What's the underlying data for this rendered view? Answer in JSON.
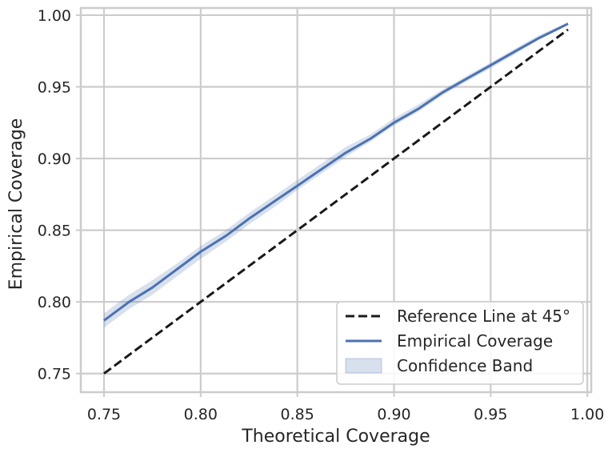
{
  "chart_data": {
    "type": "line",
    "title": "",
    "xlabel": "Theoretical Coverage",
    "ylabel": "Empirical Coverage",
    "xlim": [
      0.738,
      1.002
    ],
    "ylim": [
      0.737,
      1.005
    ],
    "xticks": [
      0.75,
      0.8,
      0.85,
      0.9,
      0.95,
      1.0
    ],
    "xtick_labels": [
      "0.75",
      "0.80",
      "0.85",
      "0.90",
      "0.95",
      "1.00"
    ],
    "yticks": [
      0.75,
      0.8,
      0.85,
      0.9,
      0.95,
      1.0
    ],
    "ytick_labels": [
      "0.75",
      "0.80",
      "0.85",
      "0.90",
      "0.95",
      "1.00"
    ],
    "grid": true,
    "legend_position": "bottom-right",
    "series": [
      {
        "name": "Reference Line at 45°",
        "kind": "line",
        "style": "dashed",
        "color": "#1a1a1a",
        "x": [
          0.75,
          0.99
        ],
        "y": [
          0.75,
          0.99
        ]
      },
      {
        "name": "Empirical Coverage",
        "kind": "line",
        "style": "solid",
        "color": "#4c72b0",
        "x": [
          0.75,
          0.763,
          0.775,
          0.788,
          0.8,
          0.813,
          0.825,
          0.838,
          0.85,
          0.863,
          0.875,
          0.888,
          0.9,
          0.913,
          0.925,
          0.938,
          0.95,
          0.963,
          0.975,
          0.99
        ],
        "y": [
          0.787,
          0.8,
          0.81,
          0.823,
          0.835,
          0.846,
          0.858,
          0.87,
          0.881,
          0.893,
          0.904,
          0.914,
          0.925,
          0.935,
          0.946,
          0.956,
          0.965,
          0.975,
          0.984,
          0.994
        ]
      },
      {
        "name": "Confidence Band",
        "kind": "band",
        "color": "#4c72b0",
        "x": [
          0.75,
          0.763,
          0.775,
          0.788,
          0.8,
          0.813,
          0.825,
          0.838,
          0.85,
          0.863,
          0.875,
          0.888,
          0.9,
          0.913,
          0.925,
          0.938,
          0.95,
          0.963,
          0.975,
          0.99
        ],
        "lower": [
          0.782,
          0.795,
          0.805,
          0.818,
          0.83,
          0.842,
          0.854,
          0.866,
          0.878,
          0.89,
          0.901,
          0.912,
          0.923,
          0.933,
          0.944,
          0.954,
          0.963,
          0.973,
          0.983,
          0.993
        ],
        "upper": [
          0.792,
          0.805,
          0.815,
          0.827,
          0.839,
          0.85,
          0.862,
          0.874,
          0.885,
          0.897,
          0.908,
          0.917,
          0.928,
          0.938,
          0.948,
          0.958,
          0.967,
          0.977,
          0.986,
          0.995
        ]
      }
    ]
  }
}
